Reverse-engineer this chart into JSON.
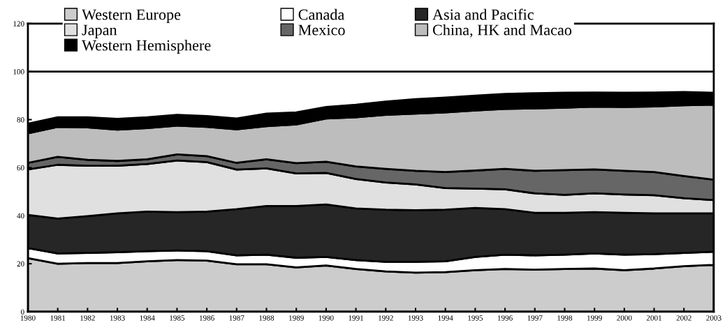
{
  "chart_data": {
    "type": "area",
    "stacked": true,
    "x": [
      1980,
      1981,
      1982,
      1983,
      1984,
      1985,
      1986,
      1987,
      1988,
      1989,
      1990,
      1991,
      1992,
      1993,
      1994,
      1995,
      1996,
      1997,
      1998,
      1999,
      2000,
      2001,
      2002,
      2003
    ],
    "xlim": [
      1980,
      2003
    ],
    "xticks": [
      1980,
      1981,
      1982,
      1983,
      1984,
      1985,
      1986,
      1987,
      1988,
      1989,
      1990,
      1991,
      1992,
      1993,
      1994,
      1995,
      1996,
      1997,
      1998,
      1999,
      2000,
      2001,
      2002,
      2003
    ],
    "ylim": [
      0,
      120
    ],
    "yticks": [
      0,
      20,
      40,
      60,
      80,
      100,
      120
    ],
    "grid": false,
    "legend": "top",
    "ref_lines": [
      {
        "axis": "y",
        "value": 100,
        "color": "#000000"
      }
    ],
    "series": [
      {
        "name": "Western Europe",
        "color": "#cccccc",
        "values": [
          22.3,
          20,
          20.3,
          20.3,
          21,
          21.5,
          21.3,
          19.8,
          19.8,
          18.5,
          19.3,
          17.8,
          16.8,
          16.3,
          16.5,
          17.3,
          17.8,
          17.5,
          17.8,
          18,
          17.3,
          18,
          19,
          19.5
        ]
      },
      {
        "name": "Canada",
        "color": "#ffffff",
        "values": [
          4.2,
          4.3,
          4.2,
          4.5,
          4.2,
          4.0,
          3.9,
          3.7,
          4.0,
          4.0,
          3.5,
          3.7,
          4.0,
          4.5,
          4.5,
          5.5,
          6.0,
          6.0,
          6.0,
          6.3,
          6.5,
          6.0,
          5.5,
          5.5
        ]
      },
      {
        "name": "Asia and Pacific",
        "color": "#262626",
        "values": [
          13.8,
          14.5,
          15.3,
          16.2,
          16.5,
          16.0,
          16.5,
          19.2,
          20.2,
          21.5,
          21.9,
          21.5,
          21.7,
          21.5,
          21.5,
          20.4,
          18.9,
          17.7,
          17.4,
          17.2,
          17.4,
          17.0,
          16.5,
          16.0
        ]
      },
      {
        "name": "Japan",
        "color": "#e0e0e0",
        "values": [
          19.0,
          22.4,
          21.0,
          19.8,
          19.8,
          21.5,
          20.6,
          16.5,
          15.7,
          13.6,
          13.1,
          12.3,
          11.3,
          10.7,
          9.0,
          8.1,
          8.3,
          8.1,
          7.5,
          7.8,
          7.6,
          7.5,
          6.3,
          5.5
        ]
      },
      {
        "name": "Mexico",
        "color": "#666666",
        "values": [
          2.7,
          3.3,
          2.5,
          2.0,
          2.0,
          2.5,
          2.5,
          2.8,
          3.8,
          4.3,
          4.7,
          5.2,
          5.7,
          5.7,
          6.7,
          7.5,
          8.5,
          9.4,
          10.3,
          10.0,
          9.9,
          9.7,
          9.2,
          8.5
        ]
      },
      {
        "name": "China, HK and Macao",
        "color": "#bdbdbd",
        "values": [
          12.3,
          12.5,
          13.5,
          13.0,
          13.0,
          12.0,
          12.2,
          14.0,
          13.8,
          16.1,
          18.0,
          20.5,
          22.5,
          23.8,
          24.8,
          25.0,
          25.0,
          26.0,
          26.0,
          26.1,
          26.6,
          27.3,
          29.5,
          31.2
        ]
      },
      {
        "name": "Western Hemisphere",
        "color": "#000000",
        "values": [
          4.0,
          4.0,
          4.2,
          4.5,
          4.5,
          4.5,
          4.5,
          4.5,
          5.2,
          5.0,
          4.8,
          5.2,
          5.5,
          6.0,
          6.2,
          6.2,
          6.2,
          6.3,
          6.2,
          5.9,
          5.9,
          5.8,
          5.5,
          5.0
        ]
      }
    ]
  }
}
